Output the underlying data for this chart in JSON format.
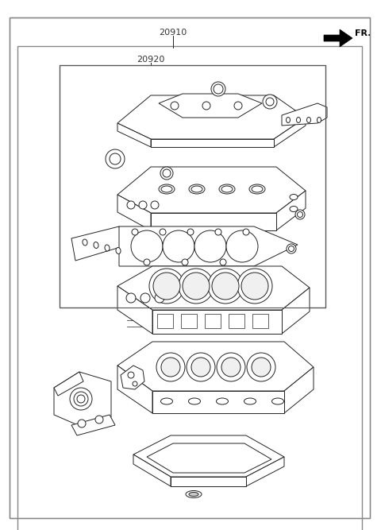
{
  "label_20910": "20910",
  "label_20920": "20920",
  "label_FR": "FR.",
  "bg_color": "#ffffff",
  "line_color": "#222222",
  "fig_width": 4.8,
  "fig_height": 6.67,
  "dpi": 100
}
